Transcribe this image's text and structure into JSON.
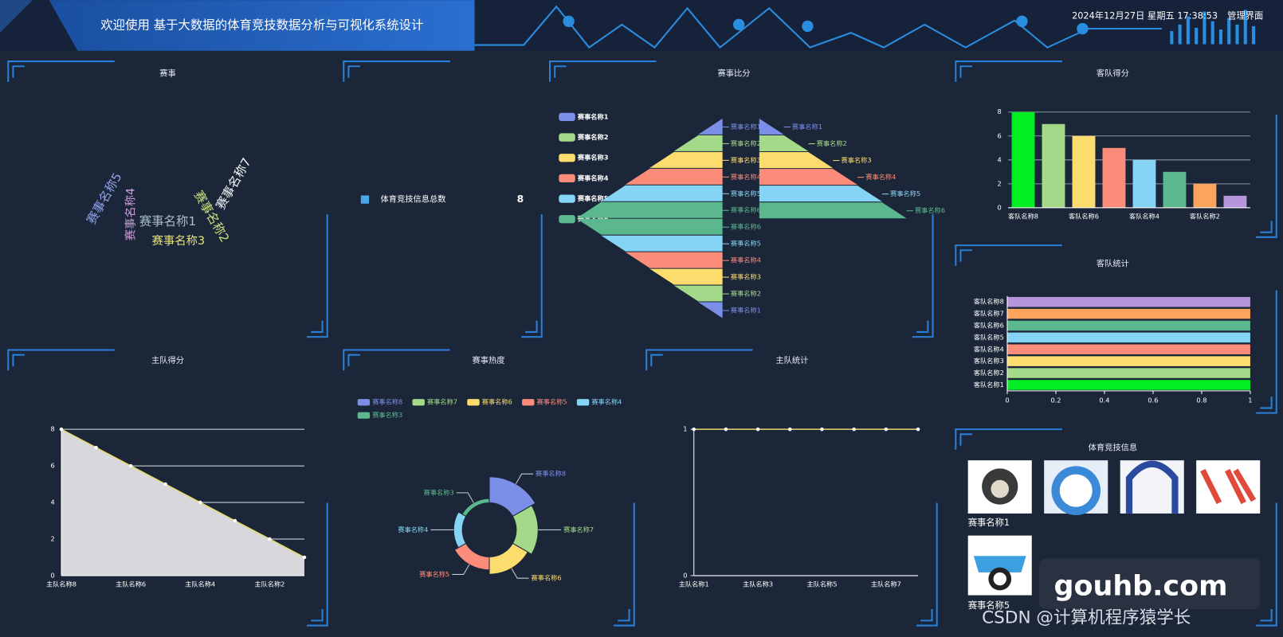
{
  "header": {
    "title": "欢迎使用 基于大数据的体育竞技数据分析与可视化系统设计",
    "datetime": "2024年12月27日 星期五 17:38:53",
    "admin": "管理界面"
  },
  "chart_data": [
    {
      "type": "wordcloud",
      "title": "赛事",
      "words": [
        {
          "text": "赛事名称5",
          "color": "#8ea0e8"
        },
        {
          "text": "赛事名称4",
          "color": "#c99bd8"
        },
        {
          "text": "赛事名称1",
          "color": "#a8bccc"
        },
        {
          "text": "赛事名称3",
          "color": "#e8e27a"
        },
        {
          "text": "赛事名称2",
          "color": "#c8e07a"
        },
        {
          "text": "赛事名称7",
          "color": "#f2f2f2"
        }
      ]
    },
    {
      "type": "stat",
      "label": "体育竞技信息总数",
      "value": 8,
      "color": "#4aa8e8"
    },
    {
      "type": "funnel",
      "title": "赛事比分",
      "categories": [
        "赛事名称1",
        "赛事名称2",
        "赛事名称3",
        "赛事名称4",
        "赛事名称5",
        "赛事名称6"
      ],
      "colors": [
        "#7b8ee8",
        "#a5d98a",
        "#fddc6e",
        "#fb8c7a",
        "#86d4f5",
        "#5bb88e"
      ],
      "funnels": [
        {
          "values": [
            1,
            2,
            3,
            4,
            5,
            6
          ],
          "order": "ascending",
          "align": "right"
        },
        {
          "values": [
            1,
            2,
            3,
            4,
            5,
            6
          ],
          "order": "descending",
          "align": "right"
        },
        {
          "values": [
            1,
            2,
            3,
            4,
            5,
            6
          ],
          "order": "ascending",
          "align": "left"
        }
      ]
    },
    {
      "type": "bar",
      "title": "客队得分",
      "categories": [
        "客队名称8",
        null,
        "客队名称6",
        null,
        "客队名称4",
        null,
        "客队名称2",
        null
      ],
      "values": [
        8,
        7,
        6,
        5,
        4,
        3,
        2,
        1
      ],
      "colors": [
        "#00ee22",
        "#a5d98a",
        "#fddc6e",
        "#fb8c7a",
        "#86d4f5",
        "#5bb88e",
        "#fca45c",
        "#b695dc"
      ],
      "ylim": [
        0,
        8
      ],
      "yticks": [
        0,
        2,
        4,
        6,
        8
      ],
      "grid": true
    },
    {
      "type": "bar",
      "orientation": "horizontal",
      "title": "客队统计",
      "categories": [
        "客队名称1",
        "客队名称2",
        "客队名称3",
        "客队名称4",
        "客队名称5",
        "客队名称6",
        "客队名称7",
        "客队名称8"
      ],
      "values": [
        1,
        1,
        1,
        1,
        1,
        1,
        1,
        1
      ],
      "colors": [
        "#00ee22",
        "#a5d98a",
        "#fddc6e",
        "#fb8c7a",
        "#86d4f5",
        "#5bb88e",
        "#fca45c",
        "#b695dc"
      ],
      "xlim": [
        0,
        1
      ],
      "xticks": [
        0,
        0.2,
        0.4,
        0.6,
        0.8,
        1
      ],
      "grid": false
    },
    {
      "type": "line",
      "area": true,
      "title": "主队得分",
      "categories": [
        "主队名称8",
        null,
        "主队名称6",
        null,
        "主队名称4",
        null,
        "主队名称2",
        null
      ],
      "values": [
        8,
        7,
        6,
        5,
        4,
        3,
        2,
        1
      ],
      "color": "#e8d86a",
      "area_color": "#d8d8dc",
      "ylim": [
        0,
        8
      ],
      "yticks": [
        0,
        2,
        4,
        6,
        8
      ],
      "grid": true
    },
    {
      "type": "pie",
      "rose": true,
      "title": "赛事热度",
      "categories": [
        "赛事名称8",
        "赛事名称7",
        "赛事名称6",
        "赛事名称5",
        "赛事名称4",
        "赛事名称3"
      ],
      "values": [
        6,
        5,
        4,
        3,
        2,
        1
      ],
      "colors": [
        "#7b8ee8",
        "#a5d98a",
        "#fddc6e",
        "#fb8c7a",
        "#86d4f5",
        "#5bb88e"
      ]
    },
    {
      "type": "line",
      "area": false,
      "title": "主队统计",
      "categories": [
        "主队名称1",
        null,
        "主队名称3",
        null,
        "主队名称5",
        null,
        "主队名称7",
        null
      ],
      "values": [
        1,
        1,
        1,
        1,
        1,
        1,
        1,
        1
      ],
      "color": "#e8d86a",
      "ylim": [
        0,
        1
      ],
      "yticks": [
        0,
        1
      ],
      "grid": false
    }
  ],
  "info": {
    "title": "体育竞技信息",
    "items": [
      "赛事名称1",
      "赛事名称5"
    ]
  },
  "watermark": {
    "site": "gouhb.com",
    "author": "CSDN @计算机程序猿学长"
  }
}
